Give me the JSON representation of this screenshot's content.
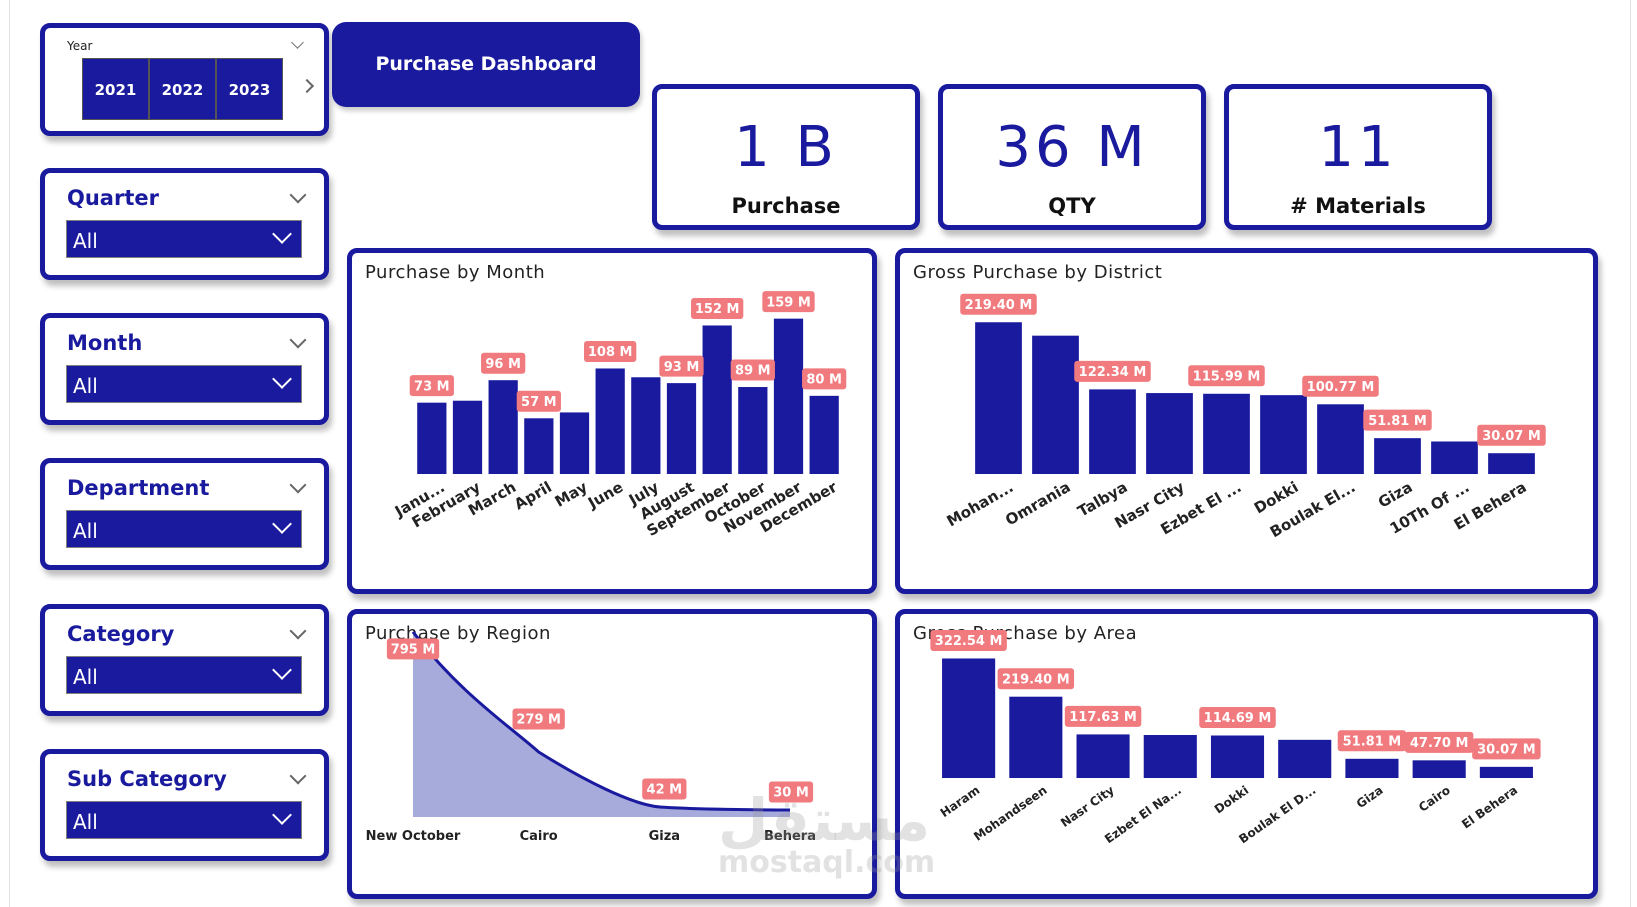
{
  "dashboard_title": "Purchase Dashboard",
  "year_slicer": {
    "label": "Year",
    "options": [
      "2021",
      "2022",
      "2023"
    ]
  },
  "slicers": [
    {
      "title": "Quarter",
      "value": "All"
    },
    {
      "title": "Month",
      "value": "All"
    },
    {
      "title": "Department",
      "value": "All"
    },
    {
      "title": "Category",
      "value": "All"
    },
    {
      "title": "Sub Category",
      "value": "All"
    }
  ],
  "kpis": [
    {
      "value": "1 B",
      "label": "Purchase"
    },
    {
      "value": "36 M",
      "label": "QTY"
    },
    {
      "value": "11",
      "label": "# Materials"
    }
  ],
  "colors": {
    "primary": "#1a1a9e",
    "label_bg": "#f07a7e",
    "area_fill": "#a7abdc"
  },
  "watermark": {
    "arabic": "مستقل",
    "latin": "mostaql.com"
  },
  "chart_data": [
    {
      "type": "bar",
      "title": "Purchase by Month",
      "categories": [
        "Janu...",
        "February",
        "March",
        "April",
        "May",
        "June",
        "July",
        "August",
        "September",
        "October",
        "November",
        "December"
      ],
      "values": [
        73,
        75,
        96,
        57,
        63,
        108,
        99,
        93,
        152,
        89,
        159,
        80
      ],
      "data_labels": [
        "73 M",
        "",
        "96 M",
        "57 M",
        "",
        "108 M",
        "",
        "93 M",
        "152 M",
        "89 M",
        "159 M",
        "80 M"
      ],
      "ylim": [
        0,
        175
      ]
    },
    {
      "type": "bar",
      "title": "Gross Purchase by District",
      "categories": [
        "Mohan...",
        "Omrania",
        "Talbya",
        "Nasr City",
        "Ezbet El ...",
        "Dokki",
        "Boulak El...",
        "Giza",
        "10Th Of ...",
        "El Behera"
      ],
      "values": [
        219.4,
        200,
        122.34,
        117,
        115.99,
        114,
        100.77,
        51.81,
        47,
        30.07
      ],
      "data_labels": [
        "219.40 M",
        "",
        "122.34 M",
        "",
        "115.99 M",
        "",
        "100.77 M",
        "51.81 M",
        "",
        "30.07 M"
      ],
      "ylim": [
        0,
        240
      ]
    },
    {
      "type": "area",
      "title": "Purchase by Region",
      "categories": [
        "New October",
        "Cairo",
        "Giza",
        "Behera"
      ],
      "values": [
        795,
        279,
        42,
        30
      ],
      "data_labels": [
        "795 M",
        "279 M",
        "42 M",
        "30 M"
      ],
      "ylim": [
        0,
        820
      ]
    },
    {
      "type": "bar",
      "title": "Gross Purchase by Area",
      "categories": [
        "Haram",
        "Mohandseen",
        "Nasr City",
        "Ezbet El Na...",
        "Dokki",
        "Boulak El D...",
        "Giza",
        "Cairo",
        "El Behera"
      ],
      "values": [
        322.54,
        219.4,
        117.63,
        116,
        114.69,
        103,
        51.81,
        47.7,
        30.07
      ],
      "data_labels": [
        "322.54 M",
        "219.40 M",
        "117.63 M",
        "",
        "114.69 M",
        "",
        "51.81 M",
        "47.70 M",
        "30.07 M"
      ],
      "ylim": [
        0,
        340
      ]
    }
  ]
}
